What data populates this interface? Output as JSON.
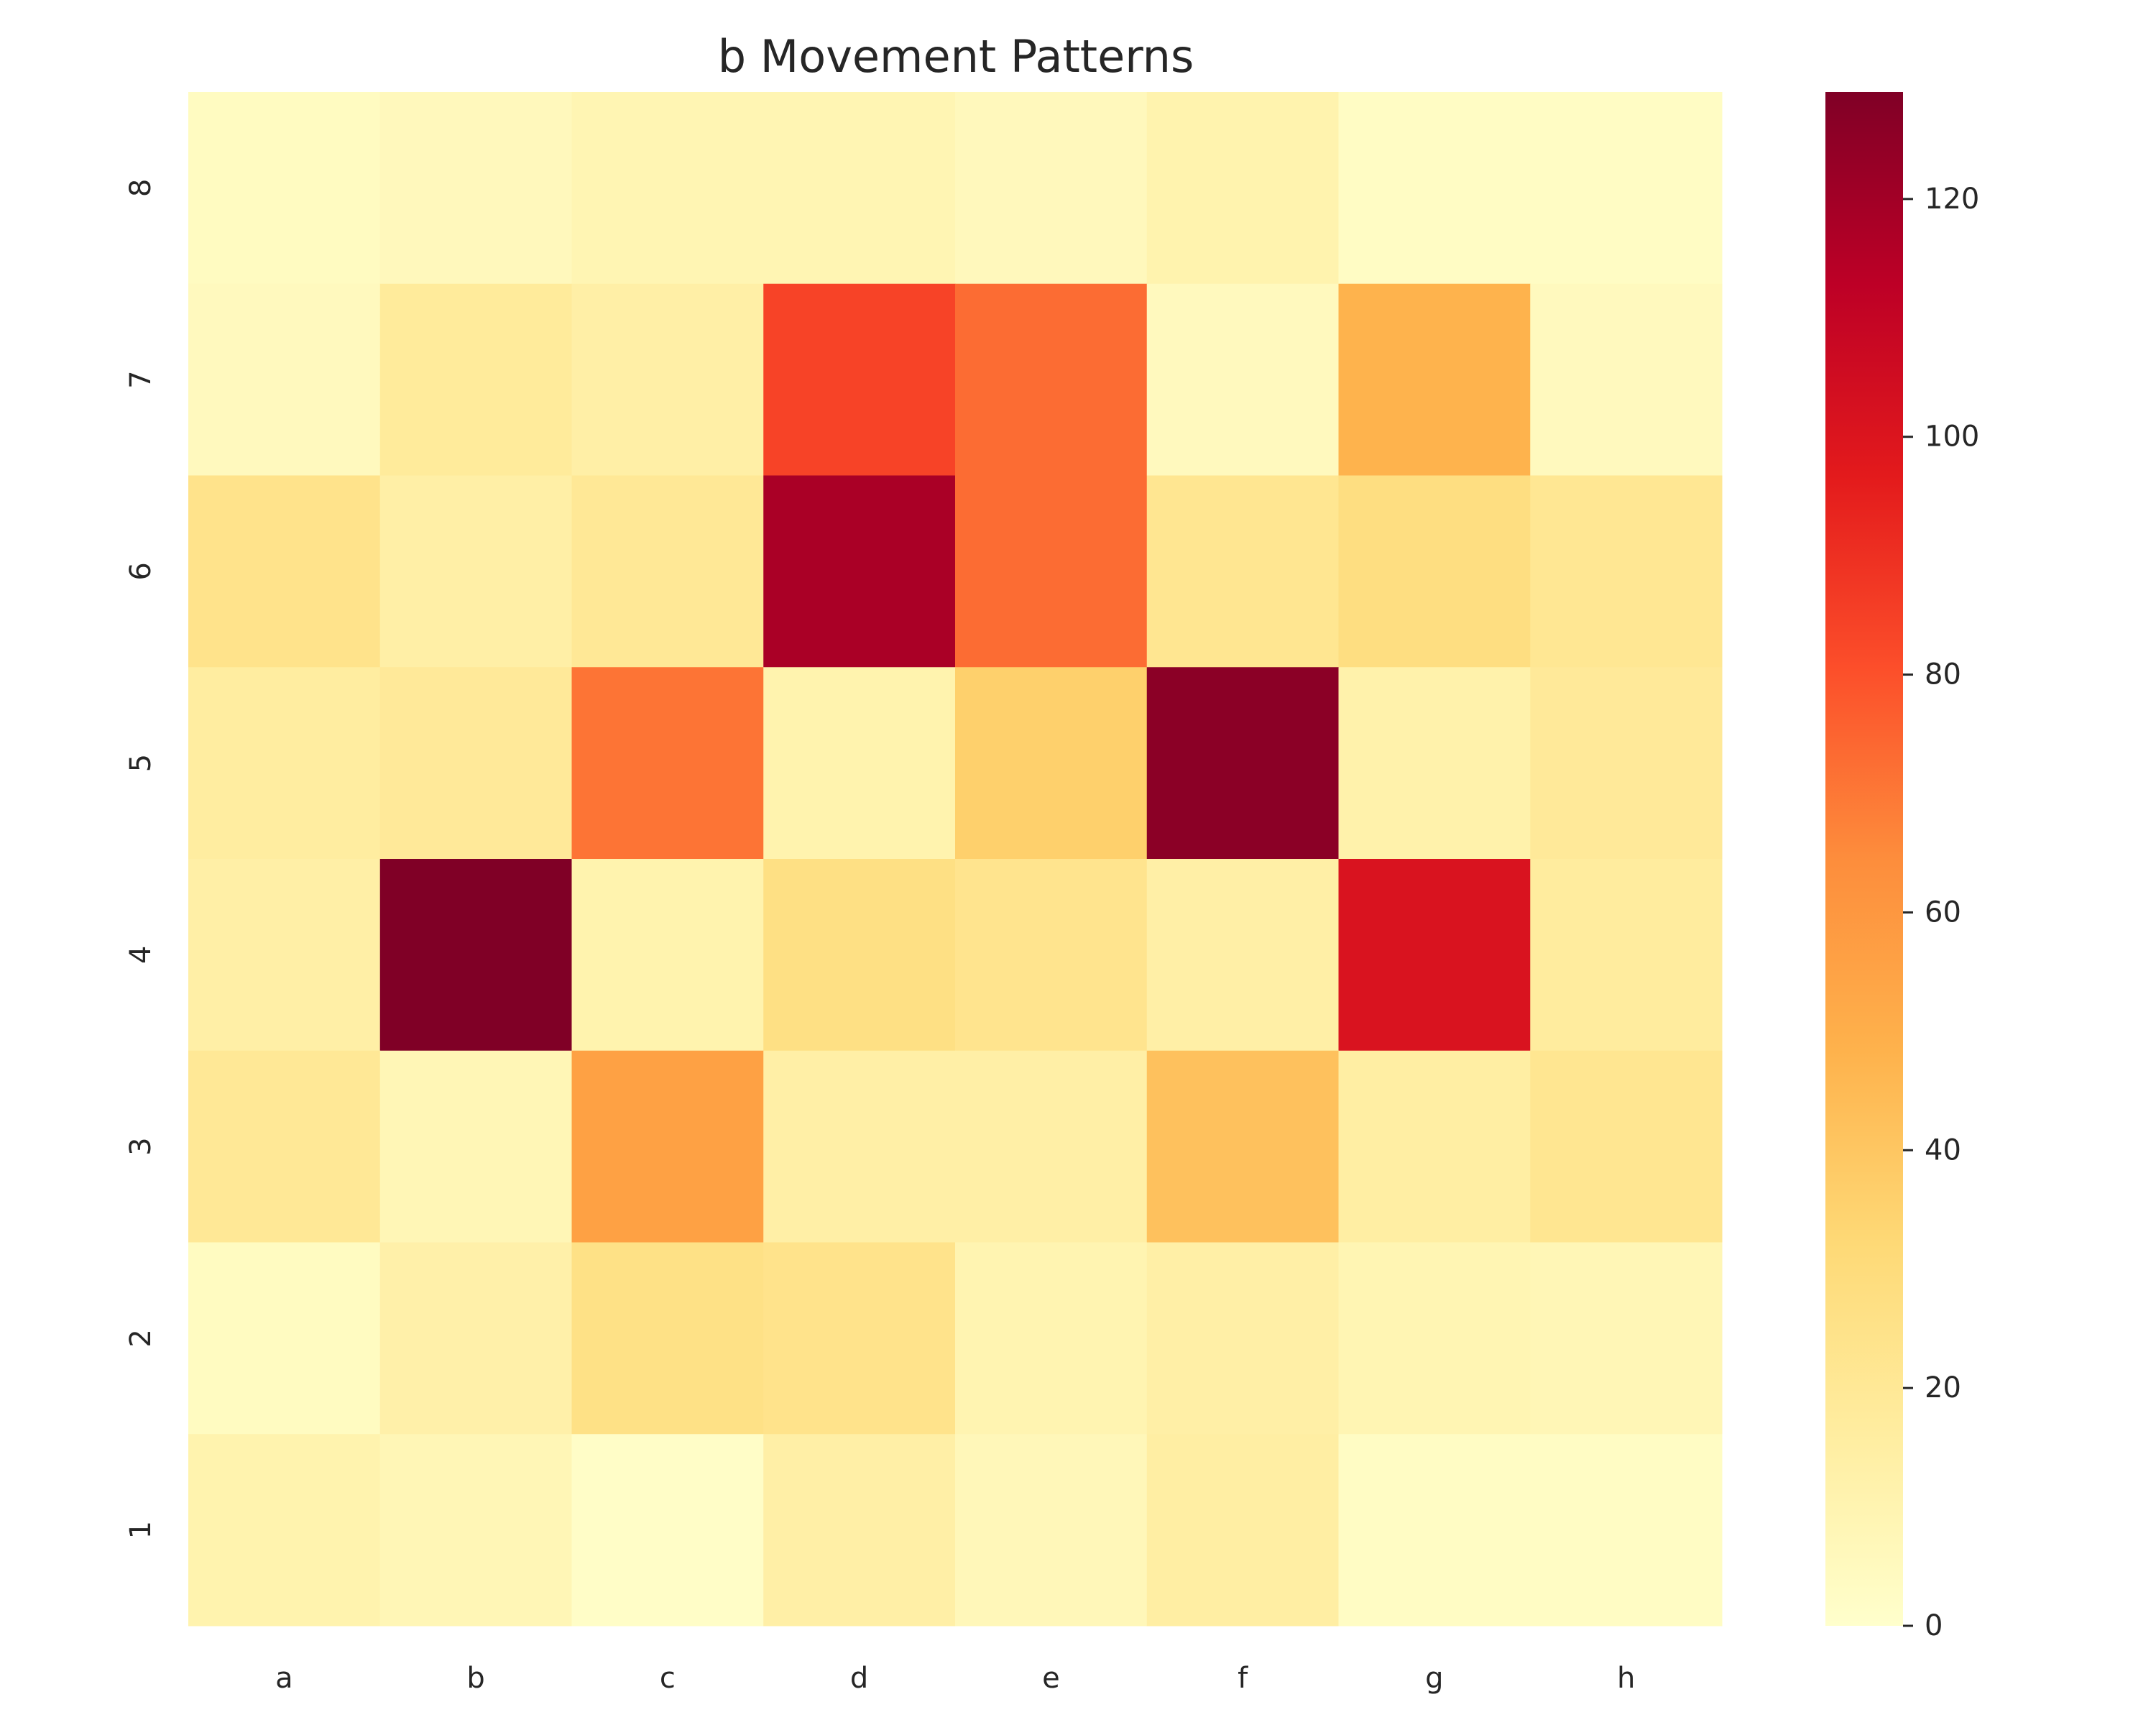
{
  "chart_data": {
    "type": "heatmap",
    "title": "b Movement Patterns",
    "xlabel": "",
    "ylabel": "",
    "x": [
      "a",
      "b",
      "c",
      "d",
      "e",
      "f",
      "g",
      "h"
    ],
    "y": [
      "8",
      "7",
      "6",
      "5",
      "4",
      "3",
      "2",
      "1"
    ],
    "values": [
      [
        4,
        6,
        9,
        9,
        6,
        11,
        3,
        3
      ],
      [
        5,
        18,
        14,
        84,
        73,
        5,
        48,
        5
      ],
      [
        24,
        14,
        20,
        118,
        73,
        22,
        28,
        21
      ],
      [
        16,
        19,
        71,
        11,
        36,
        126,
        12,
        19
      ],
      [
        14,
        129,
        11,
        27,
        23,
        14,
        101,
        17
      ],
      [
        20,
        8,
        56,
        14,
        14,
        42,
        15,
        22
      ],
      [
        4,
        13,
        26,
        24,
        10,
        14,
        9,
        8
      ],
      [
        11,
        8,
        2,
        14,
        7,
        15,
        3,
        3
      ]
    ],
    "colorbar": {
      "ticks": [
        0,
        20,
        40,
        60,
        80,
        100,
        120
      ],
      "range": [
        0,
        129
      ],
      "colormap": "YlOrRd"
    },
    "grid": false
  }
}
